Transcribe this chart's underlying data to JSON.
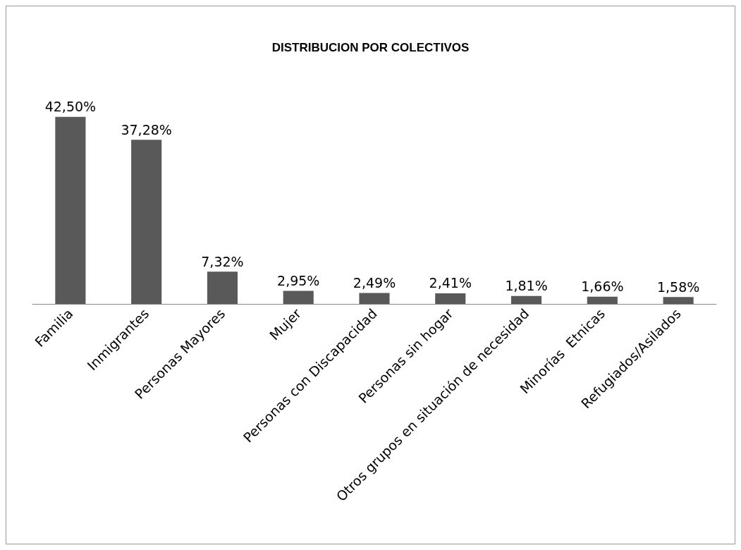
{
  "chart_data": {
    "type": "bar",
    "title": "DISTRIBUCION POR COLECTIVOS",
    "categories": [
      "Familia",
      "Inmigrantes",
      "Personas Mayores",
      "Mujer",
      "Personas con Discapacidad",
      "Personas sin hogar",
      "Otros grupos en situación de necesidad",
      "Minorías  Etnicas",
      "Refugiados/Asilados"
    ],
    "values": [
      42.5,
      37.28,
      7.32,
      2.95,
      2.49,
      2.41,
      1.81,
      1.66,
      1.58
    ],
    "value_labels": [
      "42,50%",
      "37,28%",
      "7,32%",
      "2,95%",
      "2,49%",
      "2,41%",
      "1,81%",
      "1,66%",
      "1,58%"
    ],
    "color": "#595959"
  }
}
